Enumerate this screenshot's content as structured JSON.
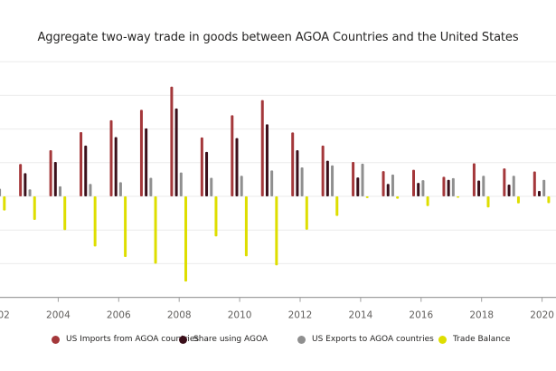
{
  "chart_data": {
    "type": "bar",
    "title": "Aggregate two-way trade in goods between AGOA Countries and the United States",
    "xlabel": "",
    "ylabel": "",
    "y_units_note": "y-axis tick labels not visible; values expressed in gridline-step units",
    "ylim": [
      -3,
      4
    ],
    "y_gridlines": [
      -2,
      -1,
      0,
      1,
      2,
      3,
      4
    ],
    "grid": true,
    "legend_position": "bottom",
    "categories": [
      "2002",
      "2003",
      "2004",
      "2005",
      "2006",
      "2007",
      "2008",
      "2009",
      "2010",
      "2011",
      "2012",
      "2013",
      "2014",
      "2015",
      "2016",
      "2017",
      "2018",
      "2019",
      "2020"
    ],
    "x_tick_labels": [
      "2002",
      "2004",
      "2006",
      "2008",
      "2010",
      "2012",
      "2014",
      "2016",
      "2018",
      "2020"
    ],
    "series": [
      {
        "name": "US Imports from AGOA countries",
        "color": "#a4373a",
        "values": [
          null,
          0.96,
          1.37,
          1.91,
          2.26,
          2.57,
          3.26,
          1.75,
          2.41,
          2.86,
          1.9,
          1.51,
          1.02,
          0.75,
          0.79,
          0.58,
          0.98,
          0.83,
          0.74
        ]
      },
      {
        "name": "Share using AGOA",
        "color": "#3b0f1a",
        "values": [
          null,
          0.69,
          1.02,
          1.51,
          1.76,
          2.02,
          2.61,
          1.32,
          1.73,
          2.14,
          1.37,
          1.06,
          0.56,
          0.37,
          0.4,
          0.49,
          0.47,
          0.35,
          0.16
        ]
      },
      {
        "name": "US Exports to AGOA countries",
        "color": "#8f8f8f",
        "values": [
          0.23,
          0.21,
          0.3,
          0.37,
          0.42,
          0.55,
          0.71,
          0.55,
          0.61,
          0.77,
          0.86,
          0.92,
          0.97,
          0.65,
          0.48,
          0.54,
          0.61,
          0.61,
          0.49
        ]
      },
      {
        "name": "Trade Balance",
        "color": "#dede00",
        "values": [
          -0.42,
          -0.7,
          -1.0,
          -1.49,
          -1.8,
          -2.0,
          -2.53,
          -1.19,
          -1.78,
          -2.05,
          -0.99,
          -0.58,
          -0.05,
          -0.07,
          -0.29,
          -0.03,
          -0.33,
          -0.21,
          -0.2
        ]
      }
    ]
  }
}
